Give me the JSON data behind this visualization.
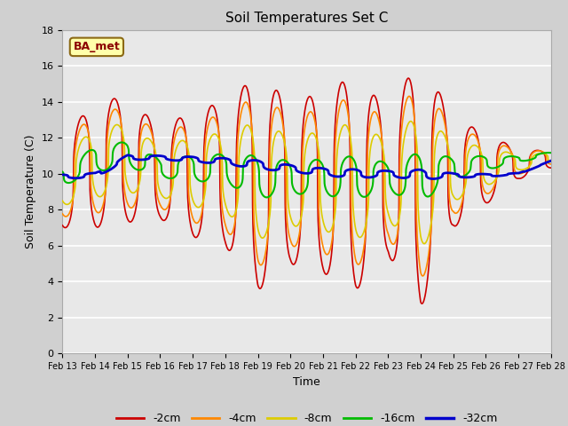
{
  "title": "Soil Temperatures Set C",
  "xlabel": "Time",
  "ylabel": "Soil Temperature (C)",
  "ylim": [
    0,
    18
  ],
  "xlim": [
    0,
    15
  ],
  "legend_labels": [
    "-2cm",
    "-4cm",
    "-8cm",
    "-16cm",
    "-32cm"
  ],
  "line_colors": [
    "#cc0000",
    "#ff8800",
    "#ddcc00",
    "#00bb00",
    "#0000cc"
  ],
  "line_widths": [
    1.2,
    1.2,
    1.2,
    1.5,
    2.0
  ],
  "annotation_text": "BA_met",
  "xtick_labels": [
    "Feb 13",
    "Feb 14",
    "Feb 15",
    "Feb 16",
    "Feb 17",
    "Feb 18",
    "Feb 19",
    "Feb 20",
    "Feb 21",
    "Feb 22",
    "Feb 23",
    "Feb 24",
    "Feb 25",
    "Feb 26",
    "Feb 27",
    "Feb 28"
  ],
  "ytick_vals": [
    0,
    2,
    4,
    6,
    8,
    10,
    12,
    14,
    16,
    18
  ],
  "fig_bg": "#d0d0d0",
  "ax_bg": "#e8e8e8",
  "grid_color": "#ffffff",
  "title_fontsize": 11,
  "tick_fontsize": 7,
  "label_fontsize": 9
}
